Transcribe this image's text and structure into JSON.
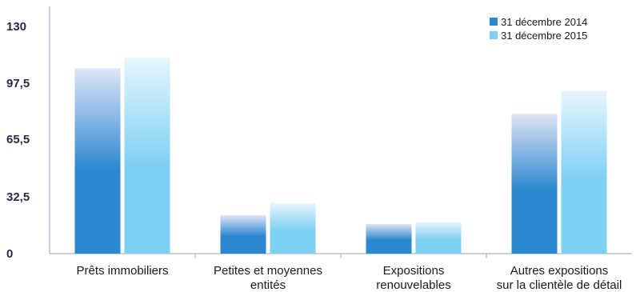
{
  "chart_data": {
    "type": "bar",
    "categories": [
      [
        "Prêts immobiliers"
      ],
      [
        "Petites et moyennes",
        "entités"
      ],
      [
        "Expositions",
        "renouvelables"
      ],
      [
        "Autres expositions",
        "sur la clientèle de détail"
      ]
    ],
    "series": [
      {
        "name": "31 décembre 2014",
        "values": [
          106,
          22,
          17,
          80
        ],
        "color_top": "#dfe5f5",
        "color_bottom": "#2b87cf"
      },
      {
        "name": "31 décembre 2015",
        "values": [
          112,
          29,
          18,
          93
        ],
        "color_top": "#e6f6fd",
        "color_bottom": "#7ed0f3"
      }
    ],
    "yticks": [
      "0",
      "32,5",
      "65,5",
      "97,5",
      "130"
    ],
    "ylim": [
      0,
      130
    ],
    "legend_position": "top-right",
    "grid": false
  }
}
